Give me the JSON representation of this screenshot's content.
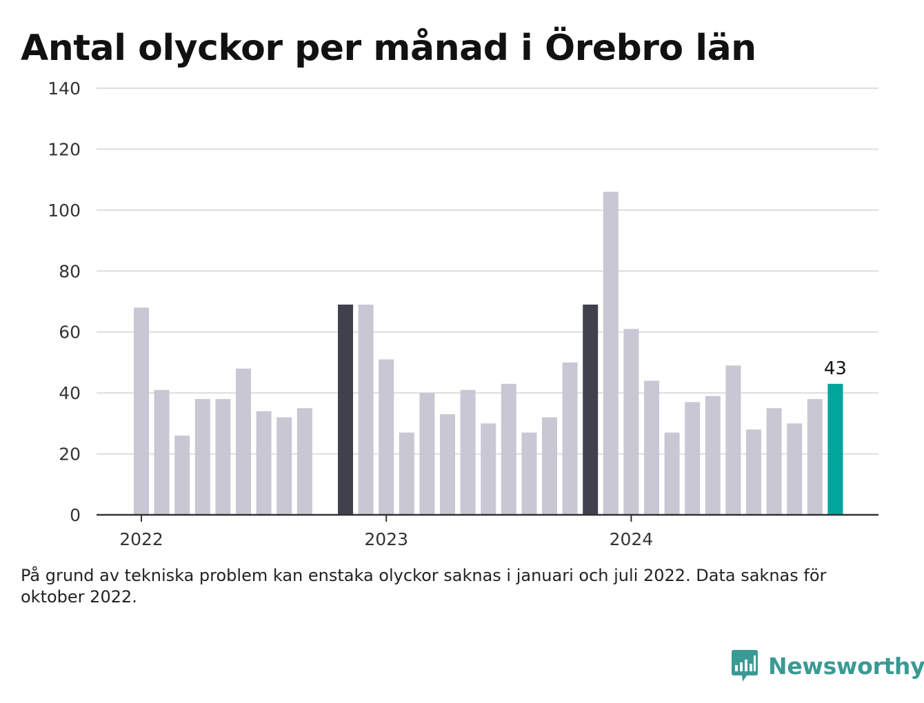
{
  "title": "Antal olyckor per månad i Örebro län",
  "note": "På grund av tekniska problem kan enstaka olyckor saknas i januari och juli 2022. Data saknas för oktober 2022.",
  "brand": {
    "name": "Newsworthy",
    "icon": "bar-chart-bubble-icon"
  },
  "colors": {
    "regular": "#c8c7d3",
    "january": "#41404d",
    "latest": "#00a59b",
    "grid": "#dddddd",
    "axis": "#333333",
    "brand": "#3a9a94"
  },
  "chart_data": {
    "type": "bar",
    "title": "Antal olyckor per månad i Örebro län",
    "xlabel": "",
    "ylabel": "",
    "ylim": [
      0,
      140
    ],
    "yticks": [
      0,
      20,
      40,
      60,
      80,
      100,
      120,
      140
    ],
    "grid": true,
    "x_tick_labels": [
      {
        "label": "2022",
        "index": 0
      },
      {
        "label": "2023",
        "index": 12
      },
      {
        "label": "2024",
        "index": 24
      }
    ],
    "categories": [
      "2022-01",
      "2022-02",
      "2022-03",
      "2022-04",
      "2022-05",
      "2022-06",
      "2022-07",
      "2022-08",
      "2022-09",
      "2022-10",
      "2022-11",
      "2022-12",
      "2023-01",
      "2023-02",
      "2023-03",
      "2023-04",
      "2023-05",
      "2023-06",
      "2023-07",
      "2023-08",
      "2023-09",
      "2023-10",
      "2023-11",
      "2023-12",
      "2024-01",
      "2024-02",
      "2024-03",
      "2024-04",
      "2024-05",
      "2024-06",
      "2024-07",
      "2024-08",
      "2024-09",
      "2024-10",
      "2024-11",
      "2024-12"
    ],
    "values": [
      68,
      41,
      26,
      38,
      38,
      48,
      34,
      32,
      35,
      null,
      69,
      69,
      51,
      27,
      40,
      33,
      41,
      30,
      43,
      27,
      32,
      50,
      69,
      106,
      61,
      44,
      27,
      37,
      39,
      49,
      28,
      35,
      30,
      38,
      43,
      null
    ],
    "highlight": {
      "dark": [
        10,
        22
      ],
      "latest": 34
    },
    "data_labels": [
      {
        "index": 34,
        "text": "43"
      }
    ]
  }
}
